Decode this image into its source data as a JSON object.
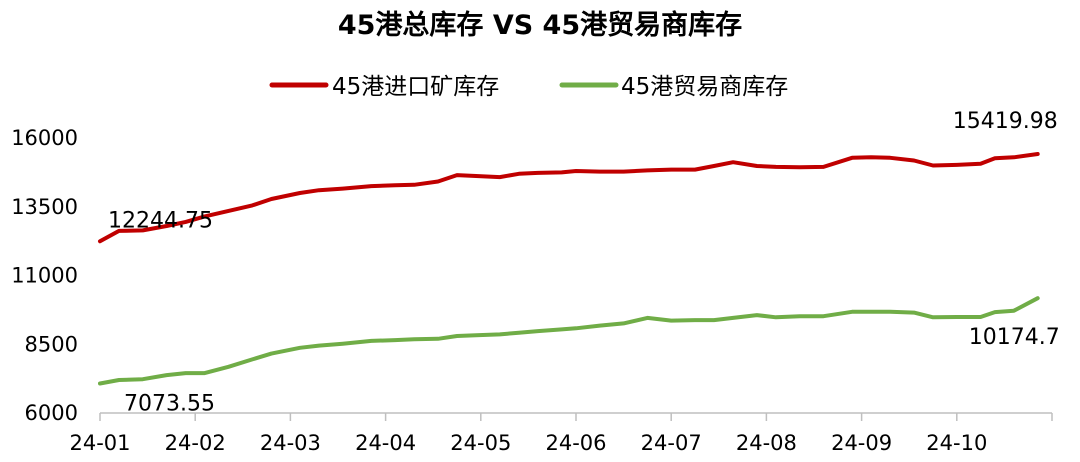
{
  "chart_data": {
    "type": "line",
    "title": "45港总库存 VS 45港贸易商库存",
    "xlabel": "",
    "ylabel": "",
    "ylim": [
      6000,
      16000
    ],
    "yticks": [
      "6000",
      "8500",
      "11000",
      "13500",
      "16000"
    ],
    "yticks_values": [
      6000,
      8500,
      11000,
      13500,
      16000
    ],
    "categories": [
      "24-01",
      "24-02",
      "24-03",
      "24-04",
      "24-05",
      "24-06",
      "24-07",
      "24-08",
      "24-09",
      "24-10"
    ],
    "legend_position": "top",
    "grid": false,
    "series": [
      {
        "name": "45港进口矿库存",
        "color": "#c00000",
        "x": [
          0,
          0.2,
          0.45,
          0.7,
          0.9,
          1.1,
          1.35,
          1.6,
          1.8,
          2.1,
          2.3,
          2.55,
          2.85,
          3.1,
          3.3,
          3.55,
          3.75,
          3.95,
          4.2,
          4.4,
          4.6,
          4.85,
          5.0,
          5.25,
          5.5,
          5.75,
          6.0,
          6.25,
          6.45,
          6.65,
          6.9,
          7.1,
          7.35,
          7.6,
          7.9,
          8.1,
          8.3,
          8.55,
          8.75,
          9.0,
          9.25,
          9.4,
          9.6,
          9.85
        ],
        "values": [
          12244.75,
          12620,
          12640,
          12800,
          12950,
          13150,
          13350,
          13550,
          13780,
          14000,
          14100,
          14160,
          14250,
          14280,
          14300,
          14420,
          14650,
          14620,
          14580,
          14700,
          14730,
          14750,
          14800,
          14780,
          14780,
          14820,
          14850,
          14850,
          14980,
          15120,
          14980,
          14950,
          14940,
          14950,
          15280,
          15300,
          15280,
          15180,
          15000,
          15020,
          15060,
          15260,
          15300,
          15419.98
        ]
      },
      {
        "name": "45港贸易商库存",
        "color": "#70ad47",
        "x": [
          0,
          0.2,
          0.45,
          0.7,
          0.9,
          1.1,
          1.35,
          1.6,
          1.8,
          2.1,
          2.3,
          2.55,
          2.85,
          3.1,
          3.3,
          3.55,
          3.75,
          3.95,
          4.2,
          4.4,
          4.6,
          4.85,
          5.0,
          5.25,
          5.5,
          5.75,
          6.0,
          6.25,
          6.45,
          6.65,
          6.9,
          7.1,
          7.35,
          7.6,
          7.9,
          8.1,
          8.3,
          8.55,
          8.75,
          9.0,
          9.25,
          9.4,
          9.6,
          9.85
        ],
        "values": [
          7073.55,
          7200,
          7230,
          7380,
          7450,
          7450,
          7680,
          7950,
          8160,
          8370,
          8450,
          8520,
          8620,
          8650,
          8680,
          8700,
          8800,
          8830,
          8860,
          8920,
          8980,
          9040,
          9080,
          9180,
          9260,
          9460,
          9360,
          9380,
          9380,
          9460,
          9560,
          9480,
          9520,
          9520,
          9680,
          9680,
          9680,
          9650,
          9480,
          9490,
          9490,
          9670,
          9720,
          10174.7
        ]
      }
    ],
    "annotations": [
      {
        "text": "12244.75",
        "series": 0,
        "point": "first"
      },
      {
        "text": "15419.98",
        "series": 0,
        "point": "last"
      },
      {
        "text": "7073.55",
        "series": 1,
        "point": "first"
      },
      {
        "text": "10174.7",
        "series": 1,
        "point": "last"
      }
    ]
  }
}
